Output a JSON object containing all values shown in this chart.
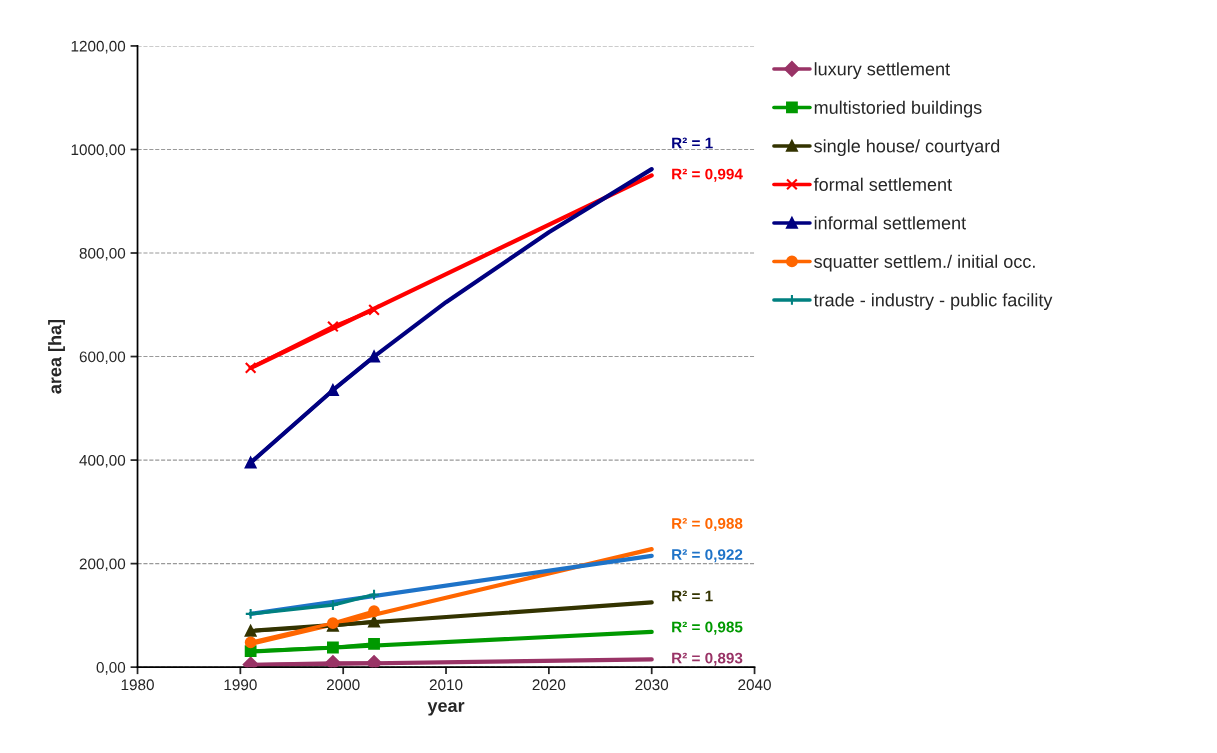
{
  "chart_data": {
    "type": "line",
    "xlabel": "year",
    "ylabel": "area [ha]",
    "xlim": [
      1980,
      2040
    ],
    "xticks": [
      1980,
      1990,
      2000,
      2010,
      2020,
      2030,
      2040
    ],
    "ylim": [
      0,
      1200
    ],
    "yticks": [
      {
        "value": 0,
        "label": "0,00"
      },
      {
        "value": 200,
        "label": "200,00"
      },
      {
        "value": 400,
        "label": "400,00"
      },
      {
        "value": 600,
        "label": "600,00"
      },
      {
        "value": 800,
        "label": "800,00"
      },
      {
        "value": 1000,
        "label": "1000,00"
      },
      {
        "value": 1200,
        "label": "1200,00"
      }
    ],
    "grid": "y",
    "legend": "right",
    "series": [
      {
        "name": "luxury settlement",
        "color": "#993366",
        "marker": "diamond",
        "x": [
          1991,
          1999,
          2003
        ],
        "values": [
          5,
          8,
          8
        ]
      },
      {
        "name": "multistoried buildings",
        "color": "#009900",
        "marker": "square",
        "x": [
          1991,
          1999,
          2003
        ],
        "values": [
          31,
          38,
          45
        ]
      },
      {
        "name": "single house/ courtyard",
        "color": "#333300",
        "marker": "triangle",
        "x": [
          1991,
          1999,
          2003
        ],
        "values": [
          70,
          80,
          88
        ]
      },
      {
        "name": "formal settlement",
        "color": "#ff0000",
        "marker": "cross",
        "x": [
          1991,
          1999,
          2003
        ],
        "values": [
          578,
          658,
          690
        ]
      },
      {
        "name": "informal settlement",
        "color": "#000080",
        "marker": "triangle",
        "x": [
          1991,
          1999,
          2003
        ],
        "values": [
          395,
          535,
          600
        ]
      },
      {
        "name": "squatter settlem./ initial occ.",
        "color": "#ff6600",
        "marker": "circle",
        "x": [
          1991,
          1999,
          2003
        ],
        "values": [
          48,
          85,
          108
        ]
      },
      {
        "name": "trade - industry - public facility",
        "color": "#008080",
        "marker": "plus",
        "x": [
          1991,
          1999,
          2003
        ],
        "values": [
          103,
          120,
          140
        ]
      },
      {
        "type": "line",
        "color": "#993366",
        "x": [
          1991,
          2030
        ],
        "values": [
          4,
          15
        ]
      },
      {
        "type": "line",
        "color": "#009900",
        "x": [
          1991,
          2030
        ],
        "values": [
          30,
          68
        ]
      },
      {
        "type": "line",
        "color": "#333300",
        "x": [
          1991,
          2030
        ],
        "values": [
          70,
          125
        ]
      },
      {
        "type": "line",
        "color": "#ff0000",
        "x": [
          1991,
          2030
        ],
        "values": [
          578,
          950
        ]
      },
      {
        "type": "line",
        "color": "#000080",
        "x": [
          1991,
          1999,
          2003,
          2010,
          2020,
          2030
        ],
        "values": [
          395,
          535,
          600,
          705,
          840,
          962
        ]
      },
      {
        "type": "line",
        "color": "#ff6600",
        "x": [
          1991,
          2030
        ],
        "values": [
          45,
          228
        ]
      },
      {
        "type": "line",
        "color": "#1e73c8",
        "x": [
          1991,
          2030
        ],
        "values": [
          103,
          215
        ]
      }
    ],
    "annotations": [
      "R² = 0,893",
      "R² = 0,985",
      "R² = 1",
      "R² = 0,994",
      "R² = 1",
      "R² = 0,988",
      "R² = 0,922"
    ]
  }
}
